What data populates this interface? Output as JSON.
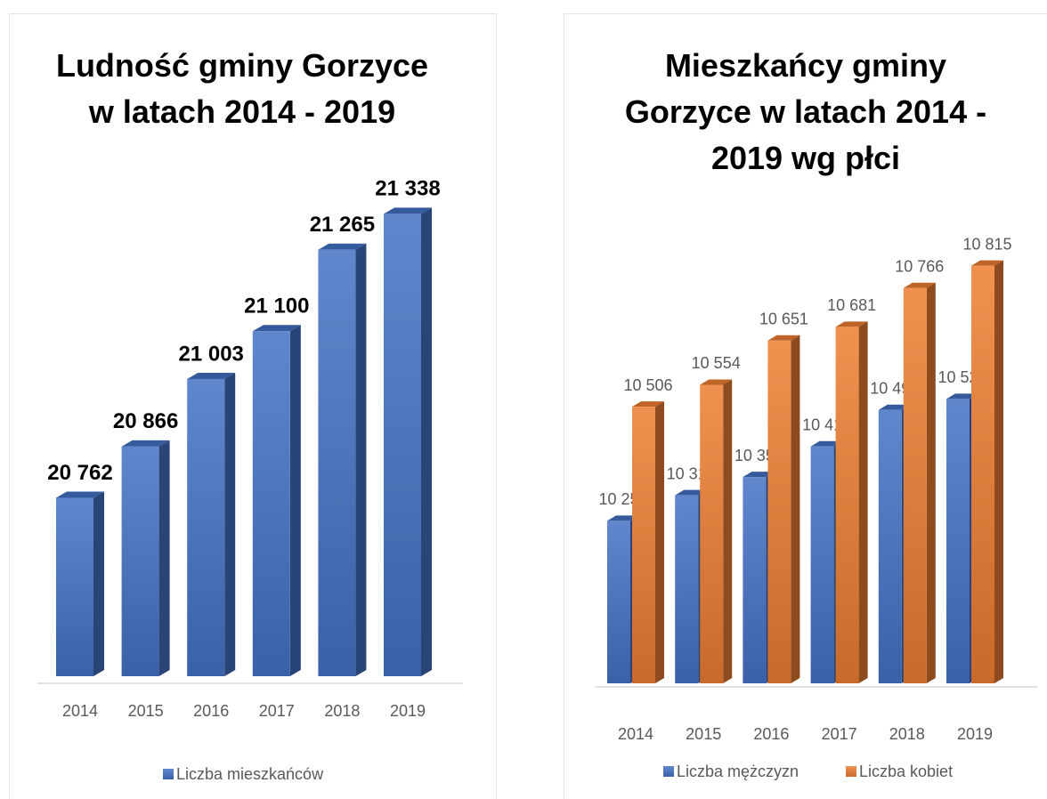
{
  "chart_data": [
    {
      "type": "bar",
      "title": "Ludność gminy Gorzyce w latach 2014 - 2019",
      "categories": [
        "2014",
        "2015",
        "2016",
        "2017",
        "2018",
        "2019"
      ],
      "series": [
        {
          "name": "Liczba mieszkańców",
          "color": "#4472c4",
          "values": [
            20762,
            20866,
            21003,
            21100,
            21265,
            21338
          ],
          "value_labels": [
            "20 762",
            "20 866",
            "21 003",
            "21 100",
            "21 265",
            "21 338"
          ]
        }
      ],
      "ylim": [
        20400,
        21400
      ],
      "legend": "bottom"
    },
    {
      "type": "bar",
      "title": "Mieszkańcy gminy Gorzyce w latach 2014 - 2019 wg płci",
      "categories": [
        "2014",
        "2015",
        "2016",
        "2017",
        "2018",
        "2019"
      ],
      "series": [
        {
          "name": "Liczba mężczyzn",
          "color": "#4472c4",
          "values": [
            10256,
            10312,
            10352,
            10419,
            10499,
            10523
          ],
          "value_labels": [
            "10 256",
            "10 312",
            "10 352",
            "10 419",
            "10 499",
            "10 523"
          ]
        },
        {
          "name": "Liczba kobiet",
          "color": "#ed7d31",
          "values": [
            10506,
            10554,
            10651,
            10681,
            10766,
            10815
          ],
          "value_labels": [
            "10 506",
            "10 554",
            "10 651",
            "10 681",
            "10 766",
            "10 815"
          ]
        }
      ],
      "ylim": [
        9900,
        10900
      ],
      "legend": "bottom"
    }
  ]
}
